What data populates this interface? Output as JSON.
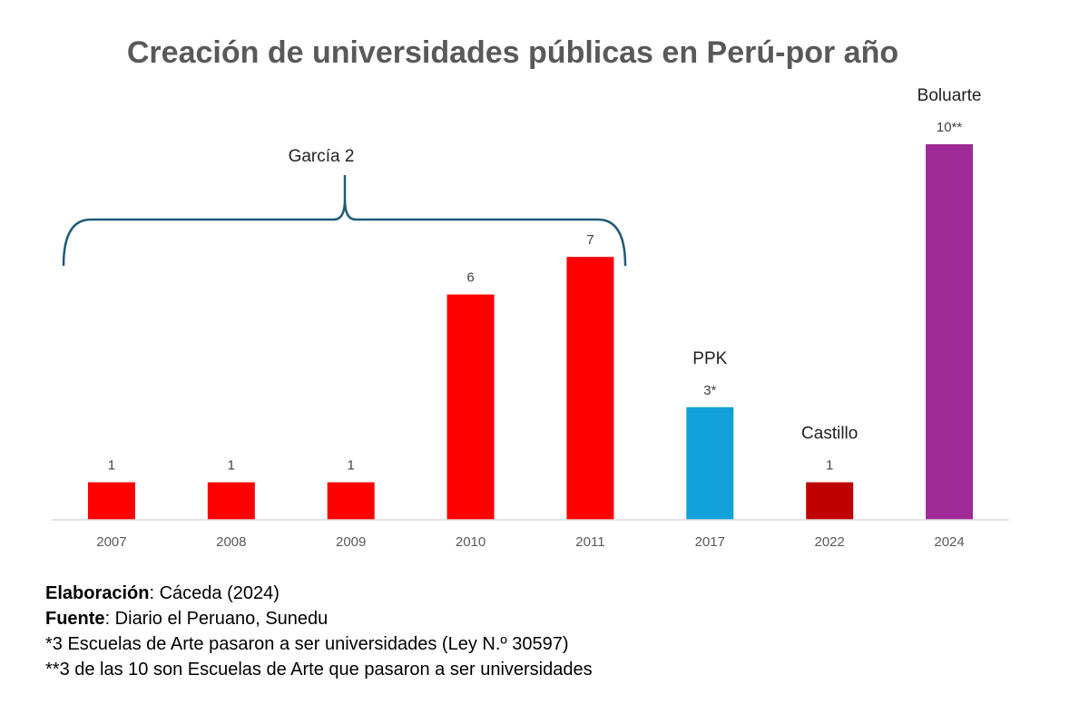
{
  "chart_data": {
    "type": "bar",
    "title": "Creación de universidades públicas en Perú-por año",
    "categories": [
      "2007",
      "2008",
      "2009",
      "2010",
      "2011",
      "2017",
      "2022",
      "2024"
    ],
    "values": [
      1,
      1,
      1,
      6,
      7,
      3,
      1,
      10
    ],
    "data_labels": [
      "1",
      "1",
      "1",
      "6",
      "7",
      "3*",
      "1",
      "10**"
    ],
    "bar_colors": [
      "#ff0000",
      "#ff0000",
      "#ff0000",
      "#ff0000",
      "#ff0000",
      "#12a0d8",
      "#c00000",
      "#9e2a96"
    ],
    "ylim": [
      0,
      10
    ],
    "grid": false,
    "annotations": [
      {
        "text": "García 2",
        "type": "brace",
        "spans": [
          "2007",
          "2011"
        ]
      },
      {
        "text": "PPK",
        "category": "2017"
      },
      {
        "text": "Castillo",
        "category": "2022"
      },
      {
        "text": "Boluarte",
        "category": "2024"
      }
    ]
  },
  "notes": {
    "elaboracion_label": "Elaboración",
    "elaboracion_value": ": Cáceda (2024)",
    "fuente_label": "Fuente",
    "fuente_value": ": Diario el Peruano, Sunedu",
    "note1": "*3 Escuelas de Arte pasaron a ser universidades (Ley N.º 30597)",
    "note2": "**3 de las 10 son Escuelas de Arte que pasaron a ser universidades"
  }
}
